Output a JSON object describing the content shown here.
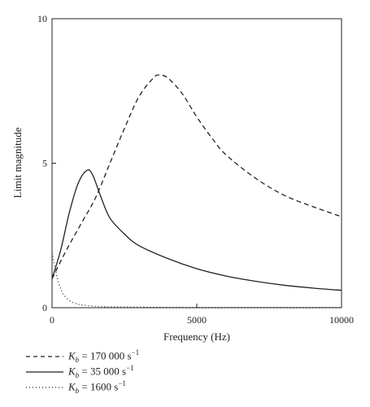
{
  "chart_data": {
    "type": "line",
    "title": "",
    "xlabel": "Frequency (Hz)",
    "ylabel": "Limit magnitude",
    "xlim": [
      0,
      10000
    ],
    "ylim": [
      0,
      10
    ],
    "x_ticks": [
      0,
      5000,
      10000
    ],
    "y_ticks": [
      0,
      5,
      10
    ],
    "grid": false,
    "legend_placement": "below",
    "series": [
      {
        "name": "Kb = 170 000 s^-1",
        "legend": {
          "symbol": "K",
          "subscript": "b",
          "value": " = 170 000 s",
          "superscript": "−1"
        },
        "line_style": "dashed",
        "color": "#222222",
        "x": [
          0,
          500,
          1000,
          1500,
          2000,
          2500,
          3000,
          3500,
          3700,
          4000,
          4500,
          5000,
          5500,
          6000,
          7000,
          8000,
          9000,
          10000
        ],
        "y": [
          1.0,
          2.0,
          2.9,
          3.8,
          5.0,
          6.2,
          7.3,
          7.95,
          8.05,
          7.95,
          7.4,
          6.6,
          5.9,
          5.3,
          4.5,
          3.9,
          3.5,
          3.15
        ]
      },
      {
        "name": "Kb = 35 000 s^-1",
        "legend": {
          "symbol": "K",
          "subscript": "b",
          "value": " = 35 000 s",
          "superscript": "−1"
        },
        "line_style": "solid",
        "color": "#222222",
        "x": [
          0,
          300,
          600,
          900,
          1200,
          1400,
          1700,
          2000,
          2500,
          3000,
          4000,
          5000,
          6000,
          7000,
          8000,
          9000,
          10000
        ],
        "y": [
          1.0,
          2.0,
          3.3,
          4.3,
          4.75,
          4.6,
          3.8,
          3.1,
          2.55,
          2.15,
          1.7,
          1.35,
          1.1,
          0.92,
          0.78,
          0.68,
          0.6
        ]
      },
      {
        "name": "Kb = 1600 s^-1",
        "legend": {
          "symbol": "K",
          "subscript": "b",
          "value": " = 1600 s",
          "superscript": "−1"
        },
        "line_style": "dotted",
        "color": "#222222",
        "x": [
          0,
          100,
          200,
          300,
          400,
          600,
          800,
          1000,
          1500,
          2000,
          3000,
          5000,
          7000,
          10000
        ],
        "y": [
          1.9,
          1.4,
          0.95,
          0.65,
          0.45,
          0.25,
          0.15,
          0.1,
          0.05,
          0.03,
          0.02,
          0.01,
          0.01,
          0.01
        ]
      }
    ]
  }
}
